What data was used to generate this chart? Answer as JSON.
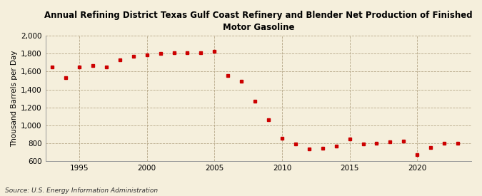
{
  "title": "Annual Refining District Texas Gulf Coast Refinery and Blender Net Production of Finished\nMotor Gasoline",
  "ylabel": "Thousand Barrels per Day",
  "source": "Source: U.S. Energy Information Administration",
  "background_color": "#f5efdc",
  "plot_bg_color": "#f5efdc",
  "marker_color": "#cc0000",
  "years": [
    1993,
    1994,
    1995,
    1996,
    1997,
    1998,
    1999,
    2000,
    2001,
    2002,
    2003,
    2004,
    2005,
    2006,
    2007,
    2008,
    2009,
    2010,
    2011,
    2012,
    2013,
    2014,
    2015,
    2016,
    2017,
    2018,
    2019,
    2020,
    2021,
    2022,
    2023
  ],
  "values": [
    1655,
    1530,
    1655,
    1670,
    1650,
    1730,
    1775,
    1785,
    1800,
    1810,
    1810,
    1810,
    1825,
    1560,
    1490,
    1270,
    1060,
    855,
    790,
    735,
    740,
    770,
    845,
    790,
    800,
    815,
    820,
    670,
    750,
    800,
    800
  ],
  "ylim": [
    600,
    2000
  ],
  "yticks": [
    600,
    800,
    1000,
    1200,
    1400,
    1600,
    1800,
    2000
  ],
  "ytick_labels": [
    "600",
    "800",
    "1,000",
    "1,200",
    "1,400",
    "1,600",
    "1,800",
    "2,000"
  ],
  "xlim": [
    1992.5,
    2024
  ],
  "xticks": [
    1995,
    2000,
    2005,
    2010,
    2015,
    2020
  ]
}
